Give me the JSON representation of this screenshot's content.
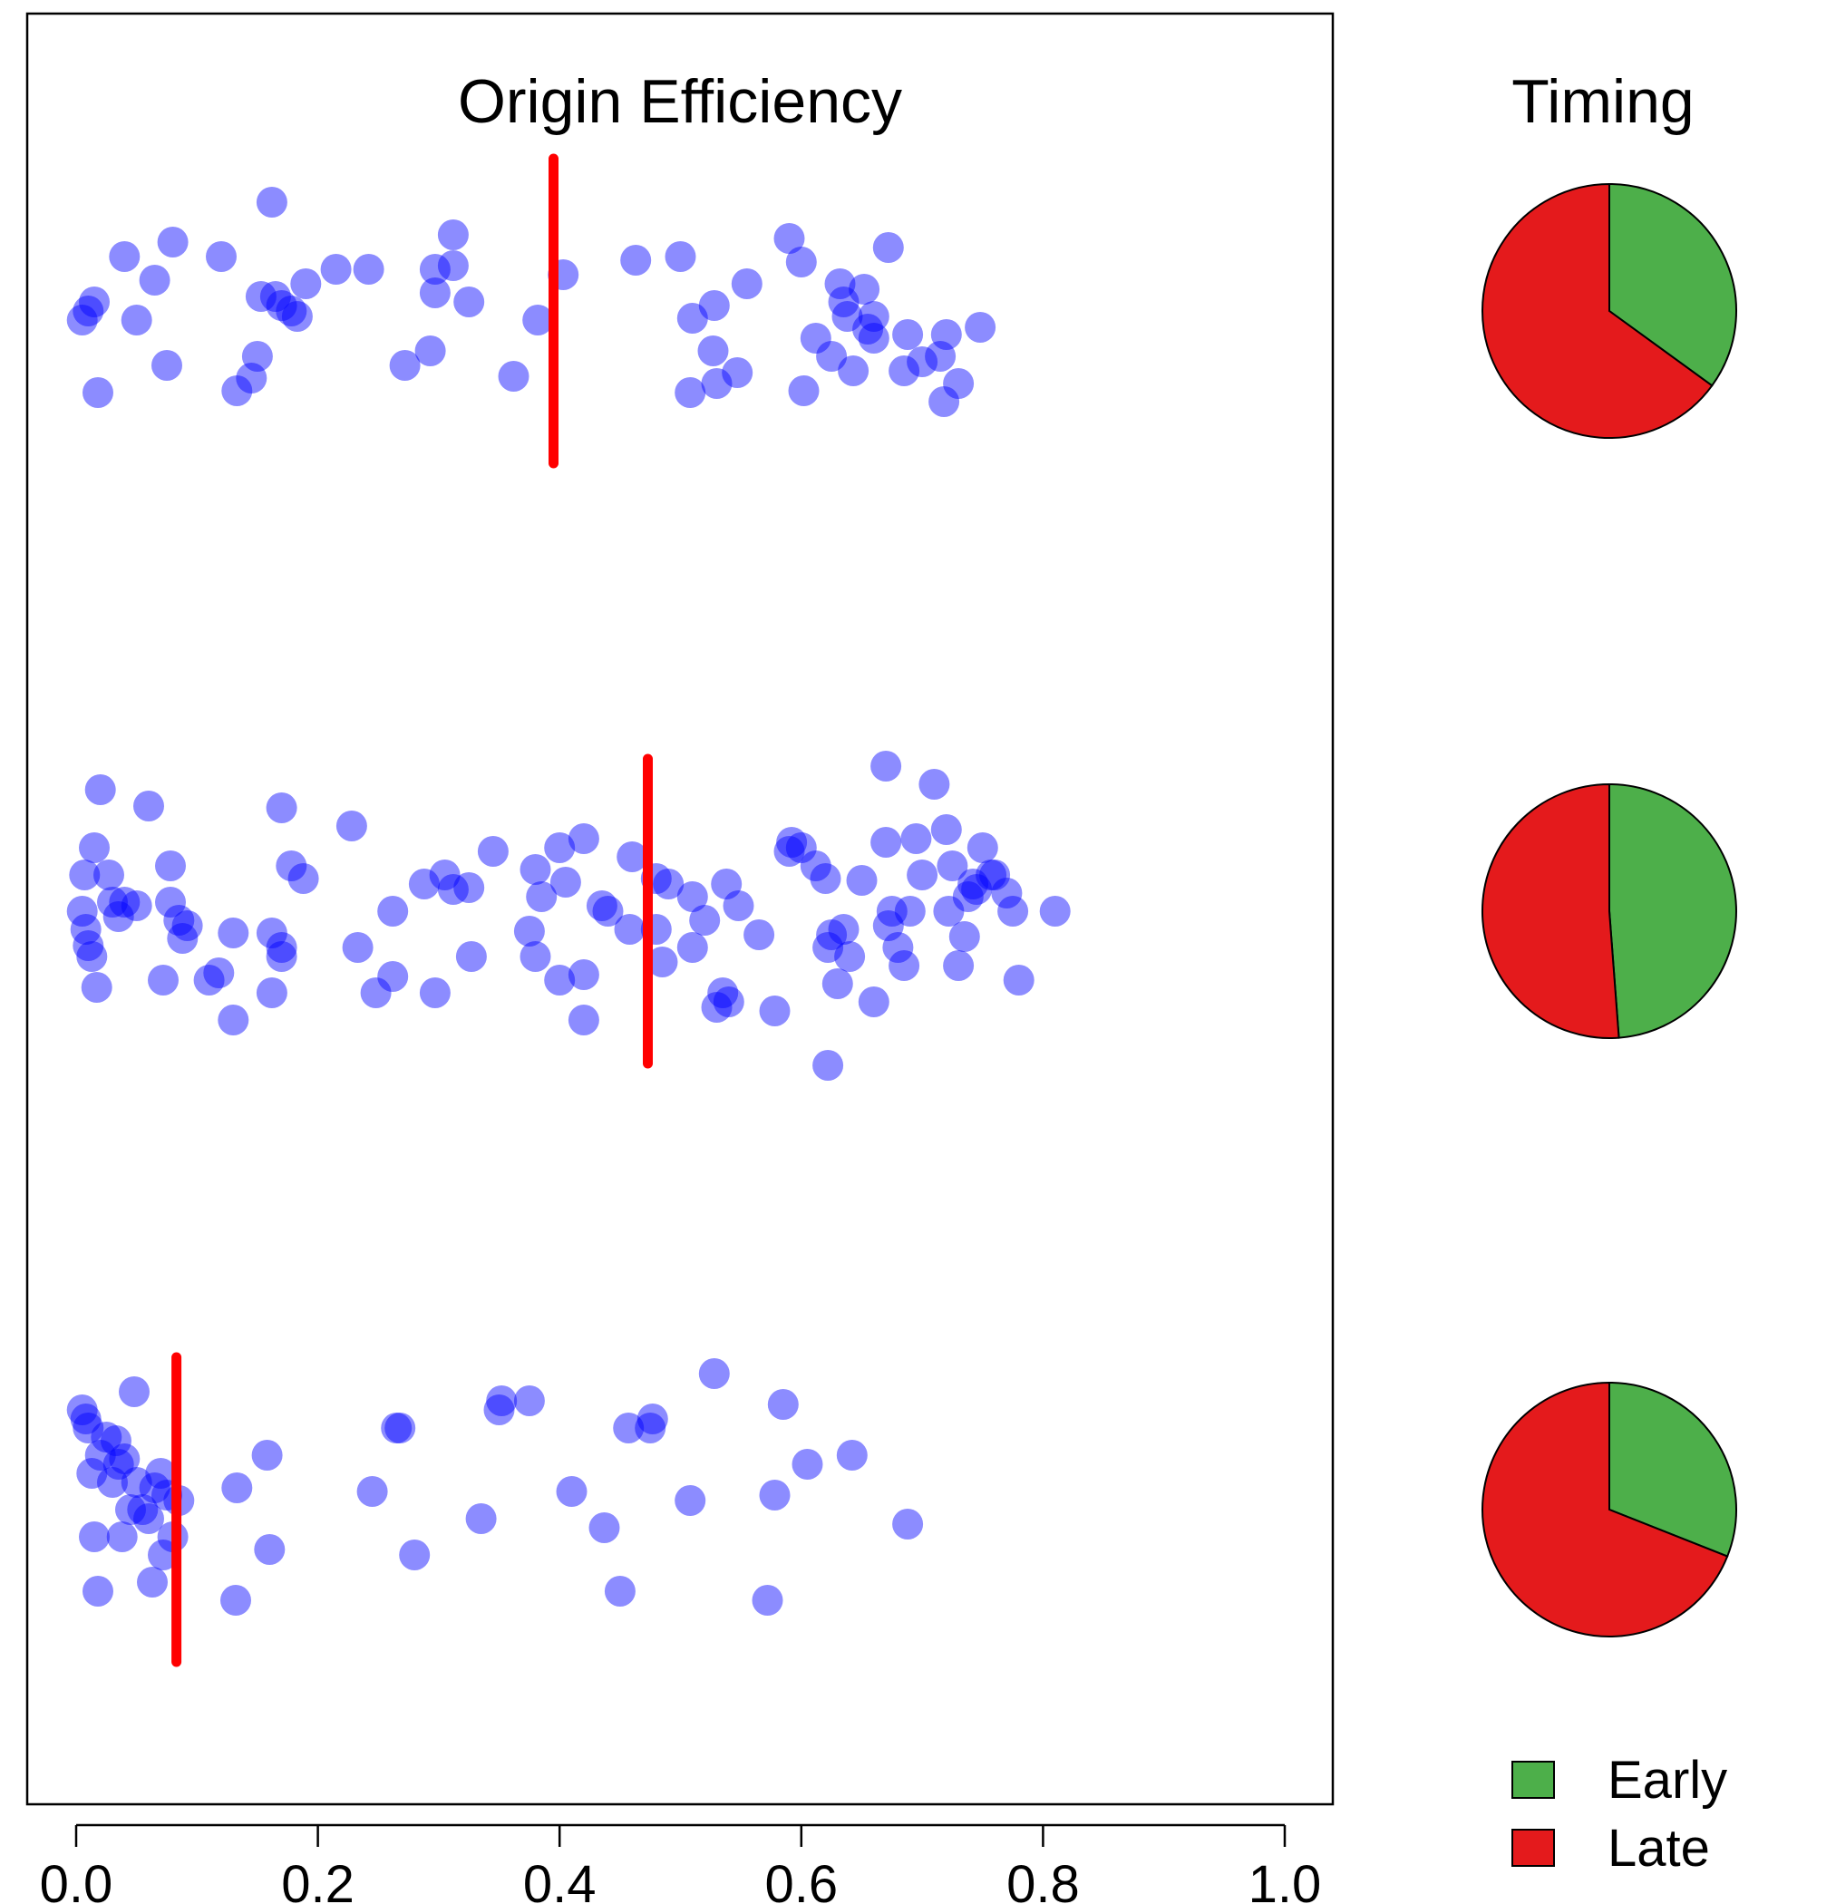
{
  "chart_data": [
    {
      "type": "scatter",
      "title": "Origin Efficiency",
      "xlabel": "",
      "ylabel": "",
      "xlim": [
        0.0,
        1.0
      ],
      "x_ticks": [
        "0.0",
        "0.2",
        "0.4",
        "0.6",
        "0.8",
        "1.0"
      ],
      "grid": false,
      "point_color": "#0000FF",
      "point_opacity": 0.45,
      "median_color": "#FF0000",
      "groups": [
        {
          "median": 0.395,
          "points": [
            [
              0.005,
              -0.05
            ],
            [
              0.01,
              0.0
            ],
            [
              0.015,
              0.05
            ],
            [
              0.018,
              -0.45
            ],
            [
              0.05,
              -0.05
            ],
            [
              0.065,
              0.17
            ],
            [
              0.04,
              0.3
            ],
            [
              0.075,
              -0.3
            ],
            [
              0.08,
              0.38
            ],
            [
              0.12,
              0.3
            ],
            [
              0.133,
              -0.44
            ],
            [
              0.145,
              -0.37
            ],
            [
              0.15,
              -0.25
            ],
            [
              0.153,
              0.08
            ],
            [
              0.162,
              0.6
            ],
            [
              0.165,
              0.08
            ],
            [
              0.17,
              0.03
            ],
            [
              0.178,
              0.0
            ],
            [
              0.183,
              -0.03
            ],
            [
              0.19,
              0.15
            ],
            [
              0.215,
              0.23
            ],
            [
              0.242,
              0.23
            ],
            [
              0.272,
              -0.3
            ],
            [
              0.293,
              -0.22
            ],
            [
              0.297,
              0.1
            ],
            [
              0.297,
              0.23
            ],
            [
              0.312,
              0.42
            ],
            [
              0.312,
              0.25
            ],
            [
              0.325,
              0.05
            ],
            [
              0.362,
              -0.36
            ],
            [
              0.382,
              -0.05
            ],
            [
              0.403,
              0.2
            ],
            [
              0.463,
              0.28
            ],
            [
              0.5,
              0.3
            ],
            [
              0.508,
              -0.45
            ],
            [
              0.51,
              -0.04
            ],
            [
              0.527,
              -0.22
            ],
            [
              0.528,
              0.03
            ],
            [
              0.53,
              -0.4
            ],
            [
              0.547,
              -0.34
            ],
            [
              0.555,
              0.15
            ],
            [
              0.59,
              0.4
            ],
            [
              0.6,
              0.27
            ],
            [
              0.602,
              -0.44
            ],
            [
              0.612,
              -0.15
            ],
            [
              0.625,
              -0.25
            ],
            [
              0.632,
              0.15
            ],
            [
              0.635,
              0.05
            ],
            [
              0.638,
              -0.03
            ],
            [
              0.643,
              -0.33
            ],
            [
              0.652,
              0.12
            ],
            [
              0.655,
              -0.1
            ],
            [
              0.66,
              -0.15
            ],
            [
              0.66,
              -0.03
            ],
            [
              0.672,
              0.35
            ],
            [
              0.685,
              -0.33
            ],
            [
              0.688,
              -0.13
            ],
            [
              0.7,
              -0.28
            ],
            [
              0.715,
              -0.25
            ],
            [
              0.718,
              -0.5
            ],
            [
              0.72,
              -0.13
            ],
            [
              0.73,
              -0.4
            ],
            [
              0.748,
              -0.09
            ]
          ]
        },
        {
          "median": 0.473,
          "points": [
            [
              0.005,
              0.0
            ],
            [
              0.007,
              0.2
            ],
            [
              0.008,
              -0.1
            ],
            [
              0.01,
              -0.19
            ],
            [
              0.013,
              -0.25
            ],
            [
              0.017,
              -0.42
            ],
            [
              0.015,
              0.35
            ],
            [
              0.02,
              0.67
            ],
            [
              0.027,
              0.2
            ],
            [
              0.03,
              0.05
            ],
            [
              0.035,
              -0.03
            ],
            [
              0.04,
              0.05
            ],
            [
              0.05,
              0.03
            ],
            [
              0.06,
              0.58
            ],
            [
              0.072,
              -0.38
            ],
            [
              0.078,
              0.25
            ],
            [
              0.078,
              0.05
            ],
            [
              0.085,
              -0.05
            ],
            [
              0.088,
              -0.15
            ],
            [
              0.092,
              -0.08
            ],
            [
              0.11,
              -0.38
            ],
            [
              0.118,
              -0.34
            ],
            [
              0.13,
              -0.6
            ],
            [
              0.13,
              -0.12
            ],
            [
              0.162,
              -0.45
            ],
            [
              0.162,
              -0.12
            ],
            [
              0.17,
              -0.2
            ],
            [
              0.17,
              -0.25
            ],
            [
              0.17,
              0.57
            ],
            [
              0.178,
              0.25
            ],
            [
              0.188,
              0.18
            ],
            [
              0.228,
              0.47
            ],
            [
              0.233,
              -0.2
            ],
            [
              0.248,
              -0.45
            ],
            [
              0.262,
              -0.36
            ],
            [
              0.262,
              0.0
            ],
            [
              0.288,
              0.15
            ],
            [
              0.297,
              -0.45
            ],
            [
              0.305,
              0.2
            ],
            [
              0.312,
              0.12
            ],
            [
              0.325,
              0.13
            ],
            [
              0.327,
              -0.25
            ],
            [
              0.345,
              0.33
            ],
            [
              0.375,
              -0.11
            ],
            [
              0.38,
              0.23
            ],
            [
              0.38,
              -0.25
            ],
            [
              0.385,
              0.08
            ],
            [
              0.4,
              0.35
            ],
            [
              0.405,
              0.16
            ],
            [
              0.4,
              -0.38
            ],
            [
              0.42,
              0.4
            ],
            [
              0.42,
              -0.6
            ],
            [
              0.42,
              -0.35
            ],
            [
              0.435,
              0.03
            ],
            [
              0.44,
              0.0
            ],
            [
              0.46,
              0.3
            ],
            [
              0.458,
              -0.1
            ],
            [
              0.48,
              0.18
            ],
            [
              0.48,
              -0.1
            ],
            [
              0.485,
              -0.28
            ],
            [
              0.49,
              0.15
            ],
            [
              0.51,
              0.08
            ],
            [
              0.51,
              -0.2
            ],
            [
              0.52,
              -0.05
            ],
            [
              0.53,
              -0.53
            ],
            [
              0.535,
              -0.45
            ],
            [
              0.538,
              0.15
            ],
            [
              0.54,
              -0.5
            ],
            [
              0.548,
              0.03
            ],
            [
              0.565,
              -0.13
            ],
            [
              0.578,
              -0.55
            ],
            [
              0.592,
              0.38
            ],
            [
              0.59,
              0.33
            ],
            [
              0.6,
              0.35
            ],
            [
              0.612,
              0.25
            ],
            [
              0.622,
              -0.85
            ],
            [
              0.62,
              0.18
            ],
            [
              0.622,
              -0.2
            ],
            [
              0.625,
              -0.13
            ],
            [
              0.63,
              -0.4
            ],
            [
              0.635,
              -0.1
            ],
            [
              0.64,
              -0.25
            ],
            [
              0.65,
              0.17
            ],
            [
              0.66,
              -0.5
            ],
            [
              0.67,
              0.8
            ],
            [
              0.67,
              0.38
            ],
            [
              0.672,
              -0.08
            ],
            [
              0.675,
              0.0
            ],
            [
              0.68,
              -0.2
            ],
            [
              0.685,
              -0.3
            ],
            [
              0.69,
              0.0
            ],
            [
              0.695,
              0.4
            ],
            [
              0.7,
              0.2
            ],
            [
              0.71,
              0.7
            ],
            [
              0.72,
              0.45
            ],
            [
              0.722,
              0.0
            ],
            [
              0.725,
              0.25
            ],
            [
              0.73,
              -0.3
            ],
            [
              0.735,
              -0.14
            ],
            [
              0.738,
              0.08
            ],
            [
              0.742,
              0.15
            ],
            [
              0.745,
              0.12
            ],
            [
              0.75,
              0.35
            ],
            [
              0.757,
              0.2
            ],
            [
              0.76,
              0.2
            ],
            [
              0.77,
              0.1
            ],
            [
              0.775,
              0.0
            ],
            [
              0.78,
              -0.38
            ],
            [
              0.81,
              0.0
            ]
          ]
        },
        {
          "median": 0.083,
          "points": [
            [
              0.005,
              0.55
            ],
            [
              0.008,
              0.5
            ],
            [
              0.01,
              0.45
            ],
            [
              0.013,
              0.2
            ],
            [
              0.015,
              -0.15
            ],
            [
              0.018,
              -0.45
            ],
            [
              0.02,
              0.3
            ],
            [
              0.025,
              0.4
            ],
            [
              0.03,
              0.15
            ],
            [
              0.033,
              0.38
            ],
            [
              0.035,
              0.25
            ],
            [
              0.038,
              -0.15
            ],
            [
              0.04,
              0.28
            ],
            [
              0.045,
              0.0
            ],
            [
              0.048,
              0.65
            ],
            [
              0.05,
              0.15
            ],
            [
              0.055,
              0.0
            ],
            [
              0.06,
              -0.05
            ],
            [
              0.063,
              -0.4
            ],
            [
              0.065,
              0.12
            ],
            [
              0.07,
              0.2
            ],
            [
              0.072,
              -0.25
            ],
            [
              0.075,
              0.08
            ],
            [
              0.08,
              -0.15
            ],
            [
              0.085,
              0.05
            ],
            [
              0.132,
              -0.5
            ],
            [
              0.133,
              0.12
            ],
            [
              0.16,
              -0.22
            ],
            [
              0.158,
              0.3
            ],
            [
              0.245,
              0.1
            ],
            [
              0.265,
              0.45
            ],
            [
              0.268,
              0.45
            ],
            [
              0.28,
              -0.25
            ],
            [
              0.335,
              -0.05
            ],
            [
              0.35,
              0.55
            ],
            [
              0.352,
              0.6
            ],
            [
              0.375,
              0.6
            ],
            [
              0.41,
              0.1
            ],
            [
              0.437,
              -0.1
            ],
            [
              0.45,
              -0.45
            ],
            [
              0.457,
              0.45
            ],
            [
              0.475,
              0.45
            ],
            [
              0.477,
              0.5
            ],
            [
              0.508,
              0.05
            ],
            [
              0.528,
              0.75
            ],
            [
              0.572,
              -0.5
            ],
            [
              0.578,
              0.08
            ],
            [
              0.585,
              0.58
            ],
            [
              0.605,
              0.25
            ],
            [
              0.642,
              0.3
            ],
            [
              0.688,
              -0.08
            ]
          ]
        }
      ]
    },
    {
      "type": "pie",
      "title": "Timing",
      "legend": {
        "placement": "bottom",
        "items": [
          {
            "label": "Early",
            "color": "#4DAF4A"
          },
          {
            "label": "Late",
            "color": "#E41A1C"
          }
        ]
      },
      "pies": [
        {
          "slices": [
            {
              "label": "Early",
              "value": 0.35
            },
            {
              "label": "Late",
              "value": 0.65
            }
          ]
        },
        {
          "slices": [
            {
              "label": "Early",
              "value": 0.488
            },
            {
              "label": "Late",
              "value": 0.512
            }
          ]
        },
        {
          "slices": [
            {
              "label": "Early",
              "value": 0.31
            },
            {
              "label": "Late",
              "value": 0.69
            }
          ]
        }
      ]
    }
  ]
}
